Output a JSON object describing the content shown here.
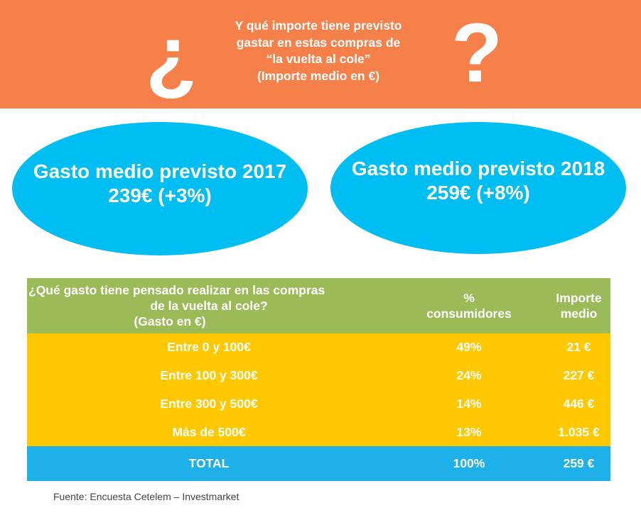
{
  "header": {
    "open_q": "¿",
    "close_q": "?",
    "lines": [
      "Y qué importe tiene previsto",
      "gastar en estas compras de",
      "“la vuelta al cole”",
      "(Importe medio en €)"
    ]
  },
  "bubbles": [
    {
      "title": "Gasto medio previsto 2017",
      "value": "239€ (+3%)"
    },
    {
      "title": "Gasto medio previsto 2018",
      "value": "259€ (+8%)"
    }
  ],
  "table": {
    "headers": {
      "q_lines": [
        "¿Qué gasto tiene pensado realizar en las compras",
        "de la vuelta al cole?",
        "(Gasto en €)"
      ],
      "pct_lines": [
        "%",
        "consumidores"
      ],
      "imp_lines": [
        "Importe",
        "medio"
      ]
    },
    "rows": [
      {
        "range": "Entre 0 y 100€",
        "pct": "49%",
        "amount": "21 €"
      },
      {
        "range": "Entre 100 y 300€",
        "pct": "24%",
        "amount": "227 €"
      },
      {
        "range": "Entre 300 y 500€",
        "pct": "14%",
        "amount": "446 €"
      },
      {
        "range": "Más de 500€",
        "pct": "13%",
        "amount": "1.035 €"
      }
    ],
    "total": {
      "label": "TOTAL",
      "pct": "100%",
      "amount": "259 €"
    }
  },
  "source": "Fuente: Encuesta Cetelem – Investmarket",
  "colors": {
    "header": "#F6804A",
    "bubble": "#00BDF2",
    "table_header": "#9BBB59",
    "rows": "#FFC800",
    "total": "#1EB0E8"
  }
}
